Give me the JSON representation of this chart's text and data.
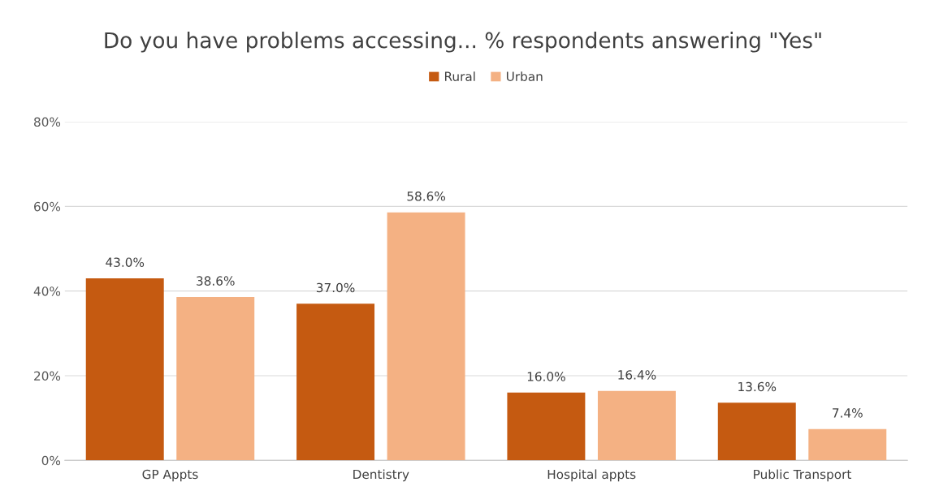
{
  "chart_data": {
    "type": "bar",
    "title": "Do you have problems accessing... % respondents answering \"Yes\"",
    "categories": [
      "GP Appts",
      "Dentistry",
      "Hospital appts",
      "Public Transport"
    ],
    "series": [
      {
        "name": "Rural",
        "color": "#c55a11",
        "values": [
          43.0,
          37.0,
          16.0,
          13.6
        ],
        "value_labels": [
          "43.0%",
          "37.0%",
          "16.0%",
          "13.6%"
        ]
      },
      {
        "name": "Urban",
        "color": "#f4b183",
        "values": [
          38.6,
          58.6,
          16.4,
          7.4
        ],
        "value_labels": [
          "38.6%",
          "58.6%",
          "16.4%",
          "7.4%"
        ]
      }
    ],
    "ylim": [
      0,
      80
    ],
    "yticks": [
      {
        "value": 0,
        "label": "0%"
      },
      {
        "value": 20,
        "label": "20%"
      },
      {
        "value": 40,
        "label": "40%"
      },
      {
        "value": 60,
        "label": "60%"
      },
      {
        "value": 80,
        "label": "80%"
      }
    ],
    "grid": "y",
    "legend": "top"
  }
}
